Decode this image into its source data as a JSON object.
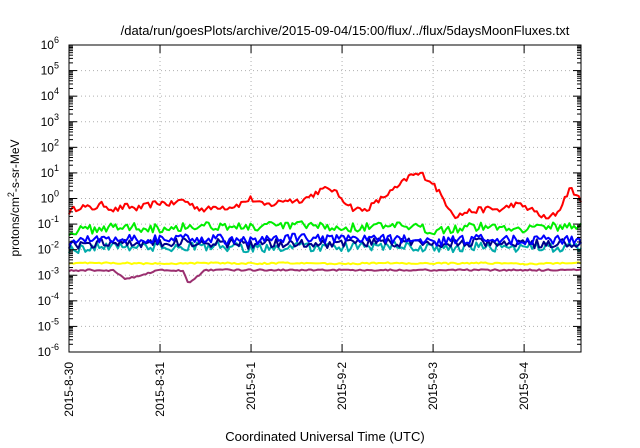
{
  "chart_data": {
    "type": "line",
    "title": "/data/run/goesPlots/archive/2015-09-04/15:00/flux/../flux/5daysMoonFluxes.txt",
    "xlabel": "Coordinated Universal Time (UTC)",
    "ylabel_parts": [
      "protons/cm",
      "2",
      "-s-sr-MeV"
    ],
    "y_scale": "log",
    "ylim": [
      1e-06,
      1000000.0
    ],
    "y_ticks": [
      {
        "base": "10",
        "exp": "6",
        "value": 1000000.0
      },
      {
        "base": "10",
        "exp": "5",
        "value": 100000.0
      },
      {
        "base": "10",
        "exp": "4",
        "value": 10000.0
      },
      {
        "base": "10",
        "exp": "3",
        "value": 1000.0
      },
      {
        "base": "10",
        "exp": "2",
        "value": 100.0
      },
      {
        "base": "10",
        "exp": "1",
        "value": 10.0
      },
      {
        "base": "10",
        "exp": "0",
        "value": 1.0
      },
      {
        "base": "10",
        "exp": "-1",
        "value": 0.1
      },
      {
        "base": "10",
        "exp": "-2",
        "value": 0.01
      },
      {
        "base": "10",
        "exp": "-3",
        "value": 0.001
      },
      {
        "base": "10",
        "exp": "-4",
        "value": 0.0001
      },
      {
        "base": "10",
        "exp": "-5",
        "value": 1e-05
      },
      {
        "base": "10",
        "exp": "-6",
        "value": 1e-06
      }
    ],
    "xlim": [
      "2015-08-30T00:00",
      "2015-09-04T15:00"
    ],
    "x_ticks": [
      {
        "label": "2015-8-30",
        "date": "2015-08-30"
      },
      {
        "label": "2015-8-31",
        "date": "2015-08-31"
      },
      {
        "label": "2015-9-1",
        "date": "2015-09-01"
      },
      {
        "label": "2015-9-2",
        "date": "2015-09-02"
      },
      {
        "label": "2015-9-3",
        "date": "2015-09-03"
      },
      {
        "label": "2015-9-4",
        "date": "2015-09-04"
      }
    ],
    "grid": true,
    "legend": "none",
    "series": [
      {
        "color": "#ff0000",
        "x": [
          "2015-08-30T00:00",
          "2015-08-30T03:00",
          "2015-08-30T06:00",
          "2015-08-30T09:00",
          "2015-08-30T12:00",
          "2015-08-30T15:00",
          "2015-08-30T18:00",
          "2015-08-30T21:00",
          "2015-08-31T00:00",
          "2015-08-31T03:00",
          "2015-08-31T06:00",
          "2015-08-31T09:00",
          "2015-08-31T12:00",
          "2015-08-31T15:00",
          "2015-08-31T18:00",
          "2015-08-31T21:00",
          "2015-09-01T00:00",
          "2015-09-01T03:00",
          "2015-09-01T06:00",
          "2015-09-01T09:00",
          "2015-09-01T12:00",
          "2015-09-01T15:00",
          "2015-09-01T18:00",
          "2015-09-01T21:00",
          "2015-09-02T00:00",
          "2015-09-02T03:00",
          "2015-09-02T06:00",
          "2015-09-02T09:00",
          "2015-09-02T12:00",
          "2015-09-02T15:00",
          "2015-09-02T18:00",
          "2015-09-02T21:00",
          "2015-09-03T00:00",
          "2015-09-03T03:00",
          "2015-09-03T06:00",
          "2015-09-03T09:00",
          "2015-09-03T12:00",
          "2015-09-03T15:00",
          "2015-09-03T18:00",
          "2015-09-03T21:00",
          "2015-09-04T00:00",
          "2015-09-04T03:00",
          "2015-09-04T06:00",
          "2015-09-04T09:00",
          "2015-09-04T12:00",
          "2015-09-04T15:00"
        ],
        "y": [
          0.3,
          0.5,
          0.4,
          0.6,
          0.35,
          0.5,
          0.4,
          0.55,
          0.7,
          0.6,
          0.9,
          0.5,
          0.35,
          0.5,
          0.45,
          0.6,
          1.0,
          0.55,
          0.6,
          0.9,
          0.8,
          1.1,
          2.0,
          2.5,
          1.0,
          0.4,
          0.35,
          0.7,
          1.5,
          3.0,
          8.0,
          9.0,
          4.0,
          0.8,
          0.2,
          0.3,
          0.35,
          0.4,
          0.35,
          0.6,
          0.5,
          0.3,
          0.15,
          0.3,
          2.5,
          0.9
        ]
      },
      {
        "color": "#00ee00",
        "x": [
          "2015-08-30T00:00",
          "2015-08-30T12:00",
          "2015-08-31T00:00",
          "2015-08-31T12:00",
          "2015-09-01T00:00",
          "2015-09-01T12:00",
          "2015-09-02T00:00",
          "2015-09-02T12:00",
          "2015-09-03T00:00",
          "2015-09-03T12:00",
          "2015-09-04T00:00",
          "2015-09-04T15:00"
        ],
        "y": [
          0.05,
          0.08,
          0.07,
          0.09,
          0.075,
          0.09,
          0.07,
          0.085,
          0.06,
          0.08,
          0.07,
          0.09
        ]
      },
      {
        "color": "#00aaaa",
        "x": [
          "2015-08-30T00:00",
          "2015-08-30T12:00",
          "2015-08-31T00:00",
          "2015-08-31T12:00",
          "2015-09-01T00:00",
          "2015-09-01T12:00",
          "2015-09-02T00:00",
          "2015-09-02T12:00",
          "2015-09-03T00:00",
          "2015-09-03T12:00",
          "2015-09-04T00:00",
          "2015-09-04T15:00"
        ],
        "y": [
          0.01,
          0.015,
          0.012,
          0.014,
          0.011,
          0.013,
          0.012,
          0.014,
          0.011,
          0.013,
          0.012,
          0.013
        ]
      },
      {
        "color": "#0000ff",
        "x": [
          "2015-08-30T00:00",
          "2015-08-30T12:00",
          "2015-08-31T00:00",
          "2015-08-31T12:00",
          "2015-09-01T00:00",
          "2015-09-01T12:00",
          "2015-09-02T00:00",
          "2015-09-02T12:00",
          "2015-09-03T00:00",
          "2015-09-03T12:00",
          "2015-09-04T00:00",
          "2015-09-04T15:00"
        ],
        "y": [
          0.02,
          0.03,
          0.025,
          0.028,
          0.022,
          0.03,
          0.024,
          0.028,
          0.02,
          0.027,
          0.023,
          0.026
        ]
      },
      {
        "color": "#00008b",
        "x": [
          "2015-08-30T00:00",
          "2015-08-30T12:00",
          "2015-08-31T00:00",
          "2015-08-31T12:00",
          "2015-09-01T00:00",
          "2015-09-01T12:00",
          "2015-09-02T00:00",
          "2015-09-02T12:00",
          "2015-09-03T00:00",
          "2015-09-03T12:00",
          "2015-09-04T00:00",
          "2015-09-04T15:00"
        ],
        "y": [
          0.015,
          0.02,
          0.018,
          0.02,
          0.016,
          0.019,
          0.017,
          0.02,
          0.016,
          0.019,
          0.017,
          0.018
        ]
      },
      {
        "color": "#ffff00",
        "x": [
          "2015-08-30T00:00",
          "2015-08-30T12:00",
          "2015-08-31T00:00",
          "2015-08-31T12:00",
          "2015-09-01T00:00",
          "2015-09-01T12:00",
          "2015-09-02T00:00",
          "2015-09-02T12:00",
          "2015-09-03T00:00",
          "2015-09-03T12:00",
          "2015-09-04T00:00",
          "2015-09-04T15:00"
        ],
        "y": [
          0.003,
          0.003,
          0.0028,
          0.003,
          0.0029,
          0.003,
          0.0028,
          0.003,
          0.0029,
          0.003,
          0.0028,
          0.003
        ]
      },
      {
        "color": "#9b3070",
        "x": [
          "2015-08-30T00:00",
          "2015-08-30T06:00",
          "2015-08-30T12:00",
          "2015-08-30T15:00",
          "2015-08-31T00:00",
          "2015-08-31T06:00",
          "2015-08-31T07:30",
          "2015-08-31T12:00",
          "2015-09-01T00:00",
          "2015-09-01T12:00",
          "2015-09-02T00:00",
          "2015-09-02T12:00",
          "2015-09-03T00:00",
          "2015-09-03T12:00",
          "2015-09-04T00:00",
          "2015-09-04T15:00"
        ],
        "y": [
          0.0015,
          0.0016,
          0.0015,
          0.0007,
          0.0016,
          0.0015,
          0.0005,
          0.0016,
          0.0016,
          0.0016,
          0.0016,
          0.0016,
          0.0016,
          0.0016,
          0.0016,
          0.0016
        ]
      }
    ]
  }
}
